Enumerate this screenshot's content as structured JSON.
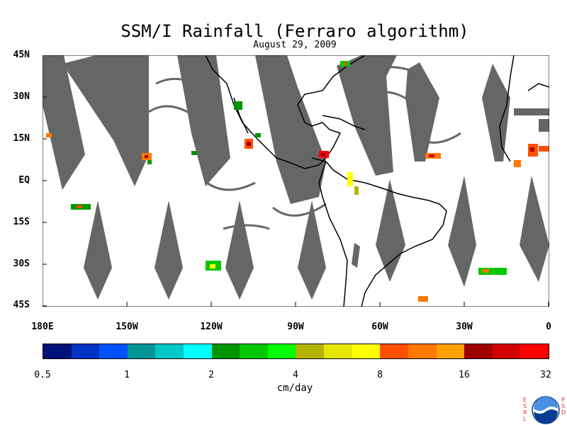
{
  "title": "SSM/I Rainfall (Ferraro algorithm)",
  "date": "August 29, 2009",
  "lat_labels": [
    "45N",
    "30N",
    "15N",
    "EQ",
    "15S",
    "30S",
    "45S"
  ],
  "lon_labels": [
    "180E",
    "150W",
    "120W",
    "90W",
    "60W",
    "30W",
    "0"
  ],
  "colorbar": {
    "colors": [
      "#00127a",
      "#0033c4",
      "#0052ff",
      "#009696",
      "#00c8c8",
      "#00ffff",
      "#009600",
      "#00c800",
      "#00ff00",
      "#b4b400",
      "#e6e600",
      "#ffff00",
      "#ff5000",
      "#ff7800",
      "#ffa000",
      "#a00000",
      "#d20000",
      "#ff0000"
    ],
    "tick_labels": [
      "0.5",
      "1",
      "2",
      "4",
      "8",
      "16",
      "32"
    ],
    "units": "cm/day"
  },
  "logo": {
    "left_text": "ESRL",
    "right_text": "PSD",
    "center_text": "NOAA"
  }
}
